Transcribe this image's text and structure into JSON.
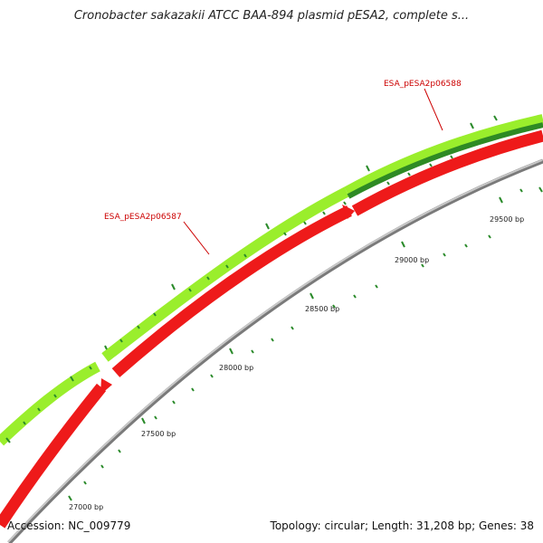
{
  "title": "Cronobacter sakazakii ATCC BAA-894 plasmid pESA2, complete s...",
  "footer": {
    "accession": "Accession: NC_009779",
    "summary": "Topology: circular; Length: 31,208 bp; Genes: 38"
  },
  "colors": {
    "outer_strand_gene": "#9aee2c",
    "outer_strand_gene_dark": "#2e8a24",
    "inner_strand_gene": "#ee1a1a",
    "backbone": "#888888",
    "tick": "#2a8a2a",
    "gene_label": "#cc0000"
  },
  "scale": {
    "labels": [
      "27000 bp",
      "27500 bp",
      "28000 bp",
      "28500 bp",
      "29000 bp",
      "29500 bp"
    ]
  },
  "genes": [
    {
      "label": "ESA_pESA2p06587"
    },
    {
      "label": "ESA_pESA2p06588"
    }
  ]
}
